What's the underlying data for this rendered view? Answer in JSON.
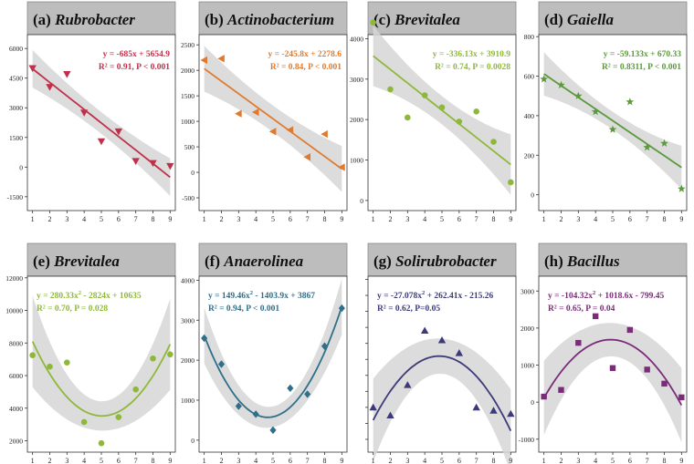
{
  "chart_data": [
    {
      "type": "scatter",
      "panel_letter": "(a)",
      "genus": "Rubrobacter",
      "color": "#c0304a",
      "marker": "triangle-down",
      "fit": "linear",
      "coef": [
        5654.9,
        -685
      ],
      "equation": "y = -685x + 5654.9",
      "stats": "R² = 0.91, P < 0.001",
      "x": [
        1,
        2,
        3,
        4,
        5,
        6,
        7,
        8,
        9
      ],
      "y": [
        5000,
        4050,
        4700,
        2750,
        1300,
        1800,
        300,
        200,
        50
      ],
      "xlim": [
        0.7,
        9.3
      ],
      "ylim": [
        -2200,
        6700
      ],
      "yticks": [
        -1500,
        0,
        1500,
        3000,
        4500,
        6000
      ],
      "ytick_labels": [
        "-1500",
        "0",
        "1500",
        "3000",
        "4500",
        "6000"
      ],
      "xticks": [
        1,
        2,
        3,
        4,
        5,
        6,
        7,
        8,
        9
      ],
      "band_half_width": [
        550,
        950
      ]
    },
    {
      "type": "scatter",
      "panel_letter": "(b)",
      "genus": "Actinobacterium",
      "color": "#e07a2e",
      "marker": "triangle-left",
      "fit": "linear",
      "coef": [
        2278.6,
        -245.8
      ],
      "equation": "y = -245.8x + 2278.6",
      "stats": "R² = 0.84, P < 0.001",
      "x": [
        1,
        2,
        3,
        4,
        5,
        6,
        7,
        8,
        9
      ],
      "y": [
        2200,
        2230,
        1150,
        1180,
        800,
        830,
        300,
        750,
        100
      ],
      "xlim": [
        0.7,
        9.3
      ],
      "ylim": [
        -750,
        2700
      ],
      "yticks": [
        -500,
        0,
        500,
        1000,
        1500,
        2000,
        2500
      ],
      "ytick_labels": [
        "-500",
        "0",
        "500",
        "1000",
        "1500",
        "2000",
        "2500"
      ],
      "xticks": [
        1,
        2,
        3,
        4,
        5,
        6,
        7,
        8,
        9
      ],
      "band_half_width": [
        260,
        450
      ]
    },
    {
      "type": "scatter",
      "panel_letter": "(c)",
      "genus": "Brevitalea",
      "color": "#8fb83a",
      "marker": "circle",
      "fit": "linear",
      "coef": [
        3910.9,
        -336.13
      ],
      "equation": "y = -336.13x + 3910.9",
      "stats": "R² = 0.74, P = 0.0028",
      "x": [
        1,
        2,
        3,
        4,
        5,
        6,
        7,
        8,
        9
      ],
      "y": [
        4400,
        2750,
        2050,
        2600,
        2300,
        1950,
        2200,
        1450,
        450
      ],
      "xlim": [
        0.7,
        9.3
      ],
      "ylim": [
        -250,
        4100
      ],
      "yticks": [
        0,
        1000,
        2000,
        3000,
        4000
      ],
      "ytick_labels": [
        "0",
        "1000",
        "2000",
        "3000",
        "4000"
      ],
      "xticks": [
        1,
        2,
        3,
        4,
        5,
        6,
        7,
        8,
        9
      ],
      "band_half_width": [
        350,
        750
      ]
    },
    {
      "type": "scatter",
      "panel_letter": "(d)",
      "genus": "Gaiella",
      "color": "#5a9a3a",
      "marker": "star",
      "fit": "linear",
      "coef": [
        670.33,
        -59.133
      ],
      "equation": "y = -59.133x + 670.33",
      "stats": "R² = 0.8311, P < 0.001",
      "x": [
        1,
        2,
        3,
        4,
        5,
        6,
        7,
        8,
        9
      ],
      "y": [
        585,
        555,
        500,
        420,
        330,
        470,
        240,
        260,
        30
      ],
      "xlim": [
        0.7,
        9.3
      ],
      "ylim": [
        -80,
        810
      ],
      "yticks": [
        0,
        200,
        400,
        600,
        800
      ],
      "ytick_labels": [
        "0",
        "200",
        "400",
        "600",
        "800"
      ],
      "xticks": [
        1,
        2,
        3,
        4,
        5,
        6,
        7,
        8,
        9
      ],
      "band_half_width": [
        45,
        110
      ]
    },
    {
      "type": "scatter",
      "panel_letter": "(e)",
      "genus": "Brevitalea",
      "color": "#8fb83a",
      "marker": "circle",
      "fit": "quadratic",
      "coef": [
        10635,
        -2824,
        280.33
      ],
      "equation_main": "y = 280.33x",
      "equation_tail": " - 2824x + 10635",
      "stats": "R² = 0.70, P = 0.028",
      "x": [
        1,
        2,
        3,
        4,
        5,
        6,
        7,
        8,
        9
      ],
      "y": [
        7250,
        6550,
        6800,
        3150,
        1850,
        3450,
        5150,
        7050,
        7300
      ],
      "xlim": [
        0.7,
        9.3
      ],
      "ylim": [
        1300,
        12100
      ],
      "yticks": [
        2000,
        4000,
        6000,
        8000,
        10000,
        12000
      ],
      "ytick_labels": [
        "2000",
        "4000",
        "6000",
        "8000",
        "10000",
        "12000"
      ],
      "xticks": [
        1,
        2,
        3,
        4,
        5,
        6,
        7,
        8,
        9
      ],
      "band_half_width": [
        900,
        2800
      ]
    },
    {
      "type": "scatter",
      "panel_letter": "(f)",
      "genus": "Anaerolinea",
      "color": "#2f6f8a",
      "marker": "diamond",
      "fit": "quadratic",
      "coef": [
        3867,
        -1403.9,
        149.46
      ],
      "equation_main": "y = 149.46x",
      "equation_tail": " - 1403.9x + 3867",
      "stats": "R² = 0.94, P < 0.001",
      "x": [
        1,
        2,
        3,
        4,
        5,
        6,
        7,
        8,
        9
      ],
      "y": [
        2550,
        1900,
        850,
        650,
        250,
        1300,
        1150,
        2350,
        3300
      ],
      "xlim": [
        0.7,
        9.3
      ],
      "ylim": [
        -300,
        4100
      ],
      "yticks": [
        0,
        1000,
        2000,
        3000,
        4000
      ],
      "ytick_labels": [
        "0",
        "1000",
        "2000",
        "3000",
        "4000"
      ],
      "xticks": [
        1,
        2,
        3,
        4,
        5,
        6,
        7,
        8,
        9
      ],
      "band_half_width": [
        260,
        700
      ]
    },
    {
      "type": "scatter",
      "panel_letter": "(g)",
      "genus": "Solirubrobacter",
      "color": "#3c3a7a",
      "marker": "triangle-up",
      "fit": "quadratic",
      "coef": [
        -215.26,
        262.41,
        -27.078
      ],
      "equation_main": "y = -27.078x",
      "equation_tail": " + 262.41x - 215.26",
      "stats": "R² = 0.62, P=0.05",
      "x": [
        1,
        2,
        3,
        4,
        5,
        6,
        7,
        8,
        9
      ],
      "y": [
        100,
        50,
        240,
        580,
        520,
        440,
        100,
        80,
        60
      ],
      "xlim": [
        0.7,
        9.3
      ],
      "ylim": [
        -180,
        920
      ],
      "yticks": [
        -100,
        0,
        100,
        200,
        300,
        400,
        500,
        600,
        700,
        800,
        900
      ],
      "ytick_labels": [
        "",
        "",
        "",
        "",
        "",
        "",
        "",
        "",
        "",
        "",
        ""
      ],
      "xticks": [
        1,
        2,
        3,
        4,
        5,
        6,
        7,
        8,
        9
      ],
      "band_half_width": [
        110,
        260
      ]
    },
    {
      "type": "scatter",
      "panel_letter": "(h)",
      "genus": "Bacillus",
      "color": "#7a2c78",
      "marker": "square",
      "fit": "quadratic",
      "coef": [
        -799.45,
        1018.6,
        -104.32
      ],
      "equation_main": "y = -104.32x",
      "equation_tail": " + 1018.6x - 799.45",
      "stats": "R² = 0.65, P = 0.04",
      "x": [
        1,
        2,
        3,
        4,
        5,
        6,
        7,
        8,
        9
      ],
      "y": [
        150,
        330,
        1600,
        2320,
        920,
        1950,
        880,
        500,
        130
      ],
      "xlim": [
        0.7,
        9.3
      ],
      "ylim": [
        -1350,
        3400
      ],
      "yticks": [
        -1000,
        0,
        1000,
        2000,
        3000
      ],
      "ytick_labels": [
        "-1000",
        "0",
        "1000",
        "2000",
        "3000"
      ],
      "xticks": [
        1,
        2,
        3,
        4,
        5,
        6,
        7,
        8,
        9
      ],
      "band_half_width": [
        450,
        1000
      ]
    }
  ]
}
